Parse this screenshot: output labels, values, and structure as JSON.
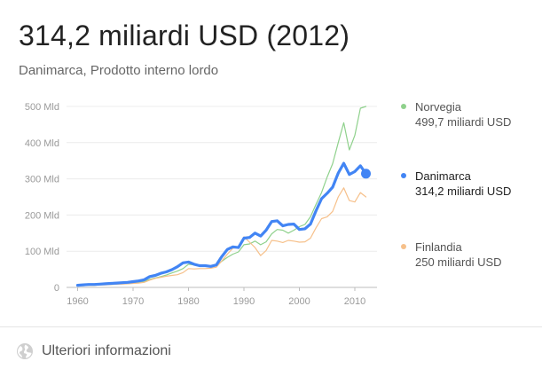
{
  "header": {
    "title": "314,2 miliardi USD (2012)",
    "subtitle": "Danimarca, Prodotto interno lordo"
  },
  "legend": [
    {
      "name": "Norvegia",
      "value_text": "499,7 miliardi USD",
      "color": "#8fd18c",
      "active": false
    },
    {
      "name": "Danimarca",
      "value_text": "314,2 miliardi USD",
      "color": "#4285f4",
      "active": true
    },
    {
      "name": "Finlandia",
      "value_text": "250 miliardi USD",
      "color": "#f6c08a",
      "active": false
    }
  ],
  "footer": {
    "more_label": "Ulteriori informazioni",
    "icon": "globe-icon"
  },
  "chart_data": {
    "type": "line",
    "title": "314,2 miliardi USD (2012)",
    "subtitle": "Danimarca, Prodotto interno lordo",
    "xlabel": "",
    "ylabel": "",
    "xlim": [
      1958,
      2014
    ],
    "ylim": [
      0,
      500
    ],
    "x_ticks": [
      1960,
      1970,
      1980,
      1990,
      2000,
      2010
    ],
    "y_ticks": [
      0,
      100,
      200,
      300,
      400,
      500
    ],
    "y_tick_labels": [
      "0",
      "100 Mld",
      "200 Mld",
      "300 Mld",
      "400 Mld",
      "500 Mld"
    ],
    "grid": "horizontal",
    "legend_position": "right",
    "x": [
      1960,
      1961,
      1962,
      1963,
      1964,
      1965,
      1966,
      1967,
      1968,
      1969,
      1970,
      1971,
      1972,
      1973,
      1974,
      1975,
      1976,
      1977,
      1978,
      1979,
      1980,
      1981,
      1982,
      1983,
      1984,
      1985,
      1986,
      1987,
      1988,
      1989,
      1990,
      1991,
      1992,
      1993,
      1994,
      1995,
      1996,
      1997,
      1998,
      1999,
      2000,
      2001,
      2002,
      2003,
      2004,
      2005,
      2006,
      2007,
      2008,
      2009,
      2010,
      2011,
      2012
    ],
    "series": [
      {
        "name": "Norvegia",
        "color": "#8fd18c",
        "width": 1.2,
        "values": [
          5,
          5,
          6,
          6,
          7,
          8,
          8,
          9,
          10,
          10,
          12,
          14,
          17,
          22,
          26,
          30,
          34,
          40,
          45,
          52,
          64,
          62,
          60,
          59,
          59,
          62,
          72,
          83,
          92,
          98,
          118,
          120,
          128,
          118,
          126,
          148,
          160,
          158,
          150,
          158,
          168,
          174,
          195,
          230,
          262,
          305,
          342,
          400,
          455,
          380,
          420,
          495,
          500
        ]
      },
      {
        "name": "Finlandia",
        "color": "#f6c08a",
        "width": 1.2,
        "values": [
          5,
          5,
          6,
          6,
          7,
          7,
          8,
          9,
          9,
          10,
          11,
          12,
          14,
          20,
          25,
          28,
          31,
          33,
          35,
          41,
          52,
          51,
          52,
          52,
          53,
          56,
          73,
          92,
          108,
          110,
          140,
          125,
          110,
          88,
          102,
          130,
          128,
          124,
          130,
          128,
          125,
          126,
          136,
          165,
          190,
          195,
          210,
          250,
          275,
          240,
          236,
          262,
          250
        ]
      },
      {
        "name": "Danimarca",
        "color": "#4285f4",
        "width": 3.2,
        "values": [
          6,
          7,
          8,
          8,
          9,
          10,
          11,
          12,
          13,
          14,
          16,
          18,
          21,
          30,
          33,
          39,
          43,
          49,
          57,
          68,
          70,
          64,
          60,
          60,
          58,
          62,
          85,
          105,
          112,
          110,
          136,
          138,
          150,
          142,
          158,
          182,
          184,
          170,
          174,
          175,
          160,
          162,
          175,
          212,
          245,
          260,
          277,
          316,
          343,
          312,
          320,
          336,
          314
        ]
      }
    ],
    "highlight": {
      "series": "Danimarca",
      "x": 2012,
      "y": 314.2
    }
  }
}
